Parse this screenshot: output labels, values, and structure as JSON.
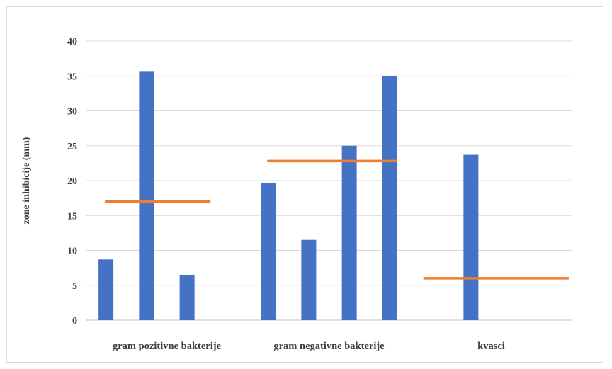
{
  "chart_data": {
    "type": "bar",
    "title": "",
    "ylabel": "zone inhibicije  (mm)",
    "xlabel": "",
    "ylim": [
      0,
      40
    ],
    "yticks": [
      "0",
      "5",
      "10",
      "15",
      "20",
      "25",
      "30",
      "35",
      "40"
    ],
    "grid": true,
    "groups": [
      {
        "label": "gram pozitivne bakterije",
        "bars": [
          8.7,
          35.7,
          6.5
        ],
        "reference_line": 17.0
      },
      {
        "label": "gram negativne bakterije",
        "bars": [
          19.7,
          11.5,
          25.0,
          35.0
        ],
        "reference_line": 22.8
      },
      {
        "label": "kvasci",
        "bars": [
          23.7
        ],
        "reference_line": 6.0
      }
    ],
    "colors": {
      "bars": "#4472c4",
      "reference_line": "#ed7d31",
      "grid": "#d9d9d9",
      "axis": "#bfbfbf",
      "text": "#404040"
    }
  }
}
